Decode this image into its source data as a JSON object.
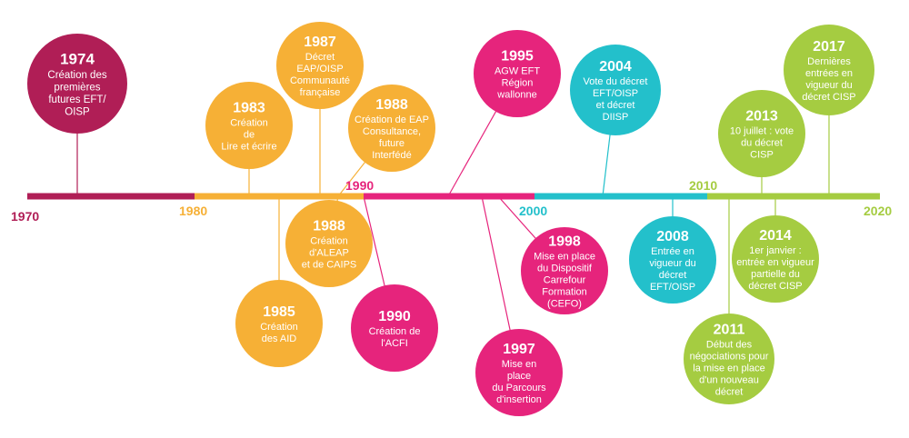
{
  "colors": {
    "decade_1970s": "#b01e56",
    "decade_1980s": "#f6b036",
    "decade_1990s": "#e6247c",
    "decade_2000s": "#23c0cb",
    "decade_2010s": "#a5cc41"
  },
  "decades": [
    {
      "label": "1970",
      "color": "#b01e56"
    },
    {
      "label": "1980",
      "color": "#f6b036"
    },
    {
      "label": "1990",
      "color": "#e6247c"
    },
    {
      "label": "2000",
      "color": "#23c0cb"
    },
    {
      "label": "2010",
      "color": "#a5cc41"
    },
    {
      "label": "2020",
      "color": "#a5cc41"
    }
  ],
  "events": [
    {
      "id": "1974",
      "year": "1974",
      "lines": [
        "Création des",
        "premières",
        "futures EFT/",
        "OISP"
      ],
      "color": "#b01e56"
    },
    {
      "id": "1983",
      "year": "1983",
      "lines": [
        "Création",
        "de",
        "Lire et écrire"
      ],
      "color": "#f6b036"
    },
    {
      "id": "1987",
      "year": "1987",
      "lines": [
        "Décret",
        "EAP/OISP",
        "Communauté",
        "française"
      ],
      "color": "#f6b036"
    },
    {
      "id": "1988a",
      "year": "1988",
      "lines": [
        "Création de EAP",
        "Consultance,",
        "future",
        "Interfédé"
      ],
      "color": "#f6b036"
    },
    {
      "id": "1988b",
      "year": "1988",
      "lines": [
        "Création",
        "d'ALEAP",
        "et de CAIPS"
      ],
      "color": "#f6b036"
    },
    {
      "id": "1985",
      "year": "1985",
      "lines": [
        "Création",
        "des AID"
      ],
      "color": "#f6b036"
    },
    {
      "id": "1990",
      "year": "1990",
      "lines": [
        "Création de",
        "l'ACFI"
      ],
      "color": "#e6247c"
    },
    {
      "id": "1995",
      "year": "1995",
      "lines": [
        "AGW EFT",
        "Région",
        "wallonne"
      ],
      "color": "#e6247c"
    },
    {
      "id": "1998",
      "year": "1998",
      "lines": [
        "Mise en place",
        "du Dispositif",
        "Carrefour",
        "Formation",
        "(CEFO)"
      ],
      "color": "#e6247c"
    },
    {
      "id": "1997",
      "year": "1997",
      "lines": [
        "Mise en",
        "place",
        "du Parcours",
        "d'insertion"
      ],
      "color": "#e6247c"
    },
    {
      "id": "2004",
      "year": "2004",
      "lines": [
        "Vote du décret",
        "EFT/OISP",
        "et décret",
        "DIISP"
      ],
      "color": "#23c0cb"
    },
    {
      "id": "2008",
      "year": "2008",
      "lines": [
        "Entrée en",
        "vigueur du",
        "décret",
        "EFT/OISP"
      ],
      "color": "#23c0cb"
    },
    {
      "id": "2013",
      "year": "2013",
      "lines": [
        "10 juillet : vote",
        "du décret",
        "CISP"
      ],
      "color": "#a5cc41"
    },
    {
      "id": "2017",
      "year": "2017",
      "lines": [
        "Dernières",
        "entrées en",
        "vigueur du",
        "décret CISP"
      ],
      "color": "#a5cc41"
    },
    {
      "id": "2014",
      "year": "2014",
      "lines": [
        "1er janvier :",
        "entrée en vigueur",
        "partielle du",
        "décret CISP"
      ],
      "color": "#a5cc41"
    },
    {
      "id": "2011",
      "year": "2011",
      "lines": [
        "Début des",
        "négociations pour",
        "la mise en place",
        "d'un nouveau",
        "décret"
      ],
      "color": "#a5cc41"
    }
  ]
}
